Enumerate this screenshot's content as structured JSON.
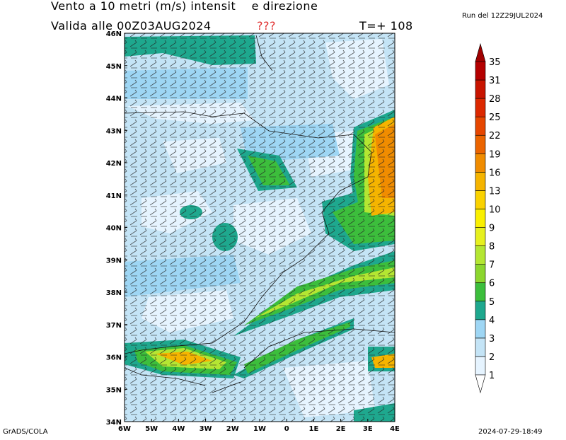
{
  "header": {
    "title": "Vento a 10 metri (m/s) intensit    e direzione",
    "valid": "Valida alle 00Z03AUG2024",
    "flag": "???",
    "step": "T=+ 108",
    "run": "Run del 12Z29JUL2024"
  },
  "map": {
    "lat_labels": [
      "34N",
      "35N",
      "36N",
      "37N",
      "38N",
      "39N",
      "40N",
      "41N",
      "42N",
      "43N",
      "44N",
      "45N",
      "46N"
    ],
    "lon_labels": [
      "6W",
      "5W",
      "4W",
      "3W",
      "2W",
      "1W",
      "0",
      "1E",
      "2E",
      "3E",
      "4E"
    ]
  },
  "colorbar": {
    "levels": [
      1,
      2,
      3,
      4,
      5,
      6,
      7,
      8,
      9,
      10,
      13,
      16,
      19,
      22,
      25,
      28,
      31,
      35
    ],
    "colors": [
      "#e6f4ff",
      "#c4e4f6",
      "#9ed6f4",
      "#1ea88e",
      "#3cbe3c",
      "#8cd62e",
      "#b4e632",
      "#e6f01e",
      "#faf000",
      "#fad200",
      "#f5b400",
      "#f08c00",
      "#eb6400",
      "#e64600",
      "#dc2800",
      "#c81400",
      "#b40000"
    ],
    "top_color": "#a00000",
    "bottom_color": "#ffffff"
  },
  "footer": {
    "left": "GrADS/COLA",
    "right": "2024-07-29-18:49"
  }
}
